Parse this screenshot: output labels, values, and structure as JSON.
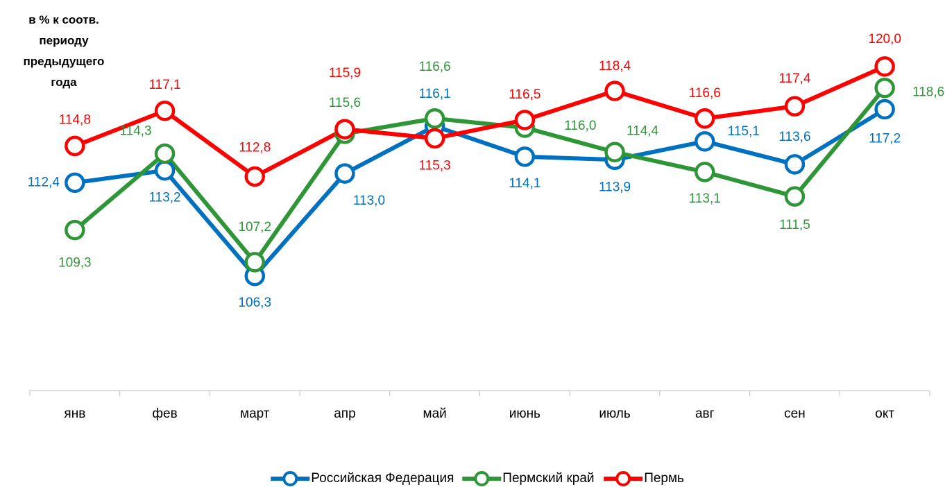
{
  "chart_data": {
    "type": "line",
    "y_label": "в % к соотв. периоду предыдущего года",
    "categories": [
      "янв",
      "фев",
      "март",
      "апр",
      "май",
      "июнь",
      "июль",
      "авг",
      "сен",
      "окт"
    ],
    "ylim": [
      98.8,
      121.4
    ],
    "legend": "bottom",
    "series": [
      {
        "name": "Российская Федерация",
        "color": "#0070c0",
        "values": [
          112.4,
          113.2,
          106.3,
          113.0,
          116.1,
          114.1,
          113.9,
          115.1,
          113.6,
          117.2
        ],
        "value_labels": [
          "112,4",
          "113,2",
          "106,3",
          "113,0",
          "116,1",
          "114,1",
          "113,9",
          "115,1",
          "113,6",
          "117,2"
        ]
      },
      {
        "name": "Пермский край",
        "color": "#2e9637",
        "values": [
          109.3,
          114.3,
          107.2,
          115.6,
          116.6,
          116.0,
          114.4,
          113.1,
          111.5,
          118.6
        ],
        "value_labels": [
          "109,3",
          "114,3",
          "107,2",
          "115,6",
          "116,6",
          "116,0",
          "114,4",
          "113,1",
          "111,5",
          "118,6"
        ]
      },
      {
        "name": "Пермь",
        "color": "#ff0000",
        "values": [
          114.8,
          117.1,
          112.8,
          115.9,
          115.3,
          116.5,
          118.4,
          116.6,
          117.4,
          120.0
        ],
        "value_labels": [
          "114,8",
          "117,1",
          "112,8",
          "115,9",
          "115,3",
          "116,5",
          "118,4",
          "116,6",
          "117,4",
          "120,0"
        ]
      }
    ]
  }
}
